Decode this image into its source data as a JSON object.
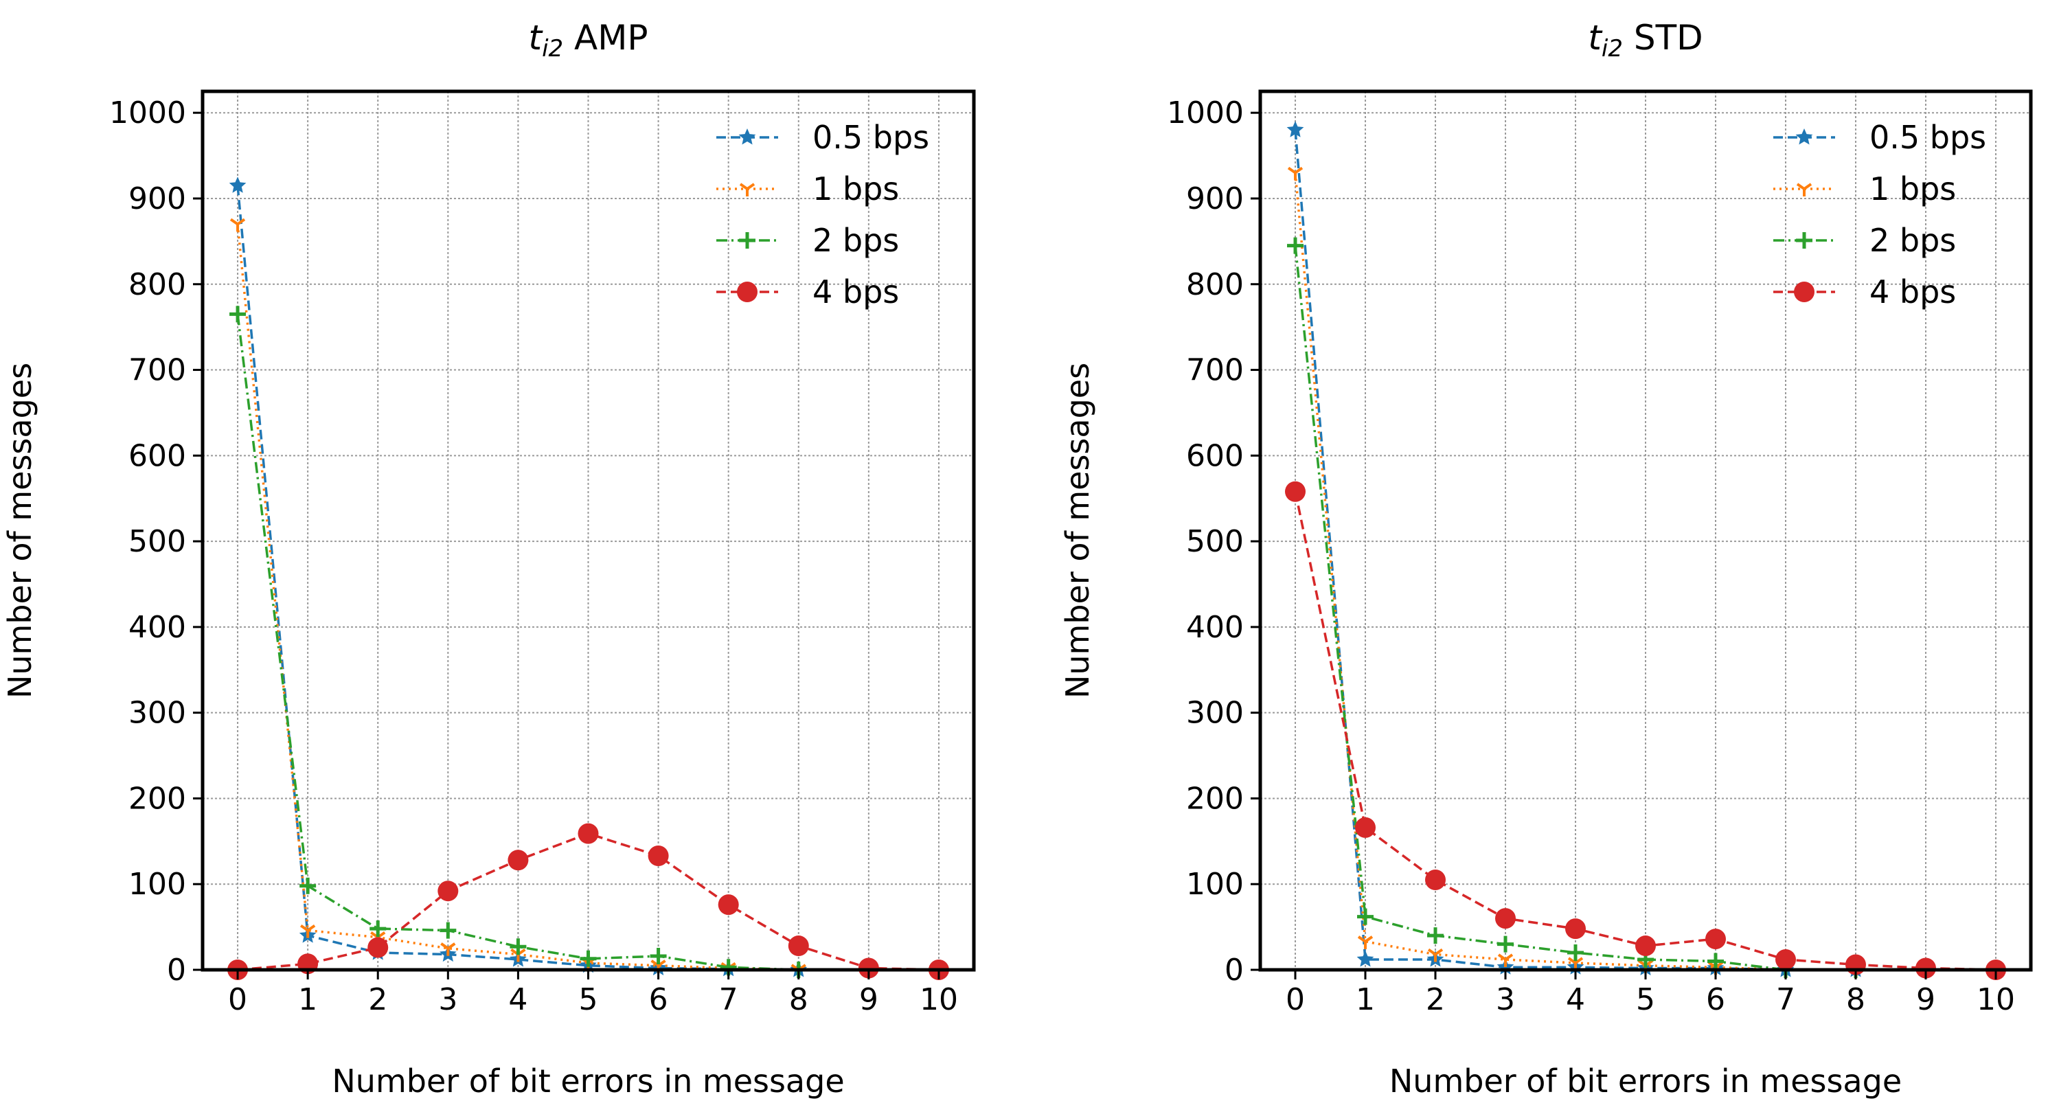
{
  "chart_data": [
    {
      "type": "line",
      "title_italic": "t",
      "title_sub": "i2",
      "title_rest": " AMP",
      "xlabel": "Number of bit errors in message",
      "ylabel": "Number of messages",
      "x": [
        0,
        1,
        2,
        3,
        4,
        5,
        6,
        7,
        8,
        9,
        10
      ],
      "xticks": [
        "0",
        "1",
        "2",
        "3",
        "4",
        "5",
        "6",
        "7",
        "8",
        "9",
        "10"
      ],
      "yticks": [
        "0",
        "100",
        "200",
        "300",
        "400",
        "500",
        "600",
        "700",
        "800",
        "900",
        "1000"
      ],
      "xlim": [
        -0.5,
        10.5
      ],
      "ylim": [
        0,
        1025
      ],
      "grid": true,
      "legend": "top-right",
      "series": [
        {
          "name": "0.5 bps",
          "color": "#1f77b4",
          "marker": "star",
          "dash": "dashed",
          "values": [
            915,
            40,
            20,
            18,
            12,
            5,
            2,
            1,
            0,
            0,
            0
          ]
        },
        {
          "name": "1 bps",
          "color": "#ff7f0e",
          "marker": "tri_down",
          "dash": "dotted",
          "values": [
            870,
            46,
            38,
            25,
            18,
            8,
            5,
            2,
            0,
            0,
            0
          ]
        },
        {
          "name": "2 bps",
          "color": "#2ca02c",
          "marker": "plus",
          "dash": "dashdot",
          "values": [
            765,
            98,
            48,
            46,
            27,
            13,
            16,
            3,
            0,
            0,
            0
          ]
        },
        {
          "name": "4 bps",
          "color": "#d62728",
          "marker": "circle",
          "dash": "dashed",
          "values": [
            0,
            7,
            26,
            92,
            128,
            159,
            133,
            76,
            28,
            2,
            0
          ]
        }
      ]
    },
    {
      "type": "line",
      "title_italic": "t",
      "title_sub": "i2",
      "title_rest": " STD",
      "xlabel": "Number of bit errors in message",
      "ylabel": "Number of messages",
      "x": [
        0,
        1,
        2,
        3,
        4,
        5,
        6,
        7,
        8,
        9,
        10
      ],
      "xticks": [
        "0",
        "1",
        "2",
        "3",
        "4",
        "5",
        "6",
        "7",
        "8",
        "9",
        "10"
      ],
      "yticks": [
        "0",
        "100",
        "200",
        "300",
        "400",
        "500",
        "600",
        "700",
        "800",
        "900",
        "1000"
      ],
      "xlim": [
        -0.5,
        10.5
      ],
      "ylim": [
        0,
        1025
      ],
      "grid": true,
      "legend": "top-right",
      "series": [
        {
          "name": "0.5 bps",
          "color": "#1f77b4",
          "marker": "star",
          "dash": "dashed",
          "values": [
            980,
            12,
            12,
            3,
            3,
            2,
            2,
            0,
            0,
            0,
            0
          ]
        },
        {
          "name": "1 bps",
          "color": "#ff7f0e",
          "marker": "tri_down",
          "dash": "dotted",
          "values": [
            930,
            33,
            18,
            12,
            8,
            5,
            3,
            0,
            0,
            0,
            0
          ]
        },
        {
          "name": "2 bps",
          "color": "#2ca02c",
          "marker": "plus",
          "dash": "dashdot",
          "values": [
            845,
            62,
            40,
            30,
            20,
            12,
            10,
            0,
            0,
            0,
            0
          ]
        },
        {
          "name": "4 bps",
          "color": "#d62728",
          "marker": "circle",
          "dash": "dashed",
          "values": [
            558,
            166,
            105,
            60,
            48,
            28,
            36,
            12,
            6,
            2,
            0
          ]
        }
      ]
    }
  ]
}
